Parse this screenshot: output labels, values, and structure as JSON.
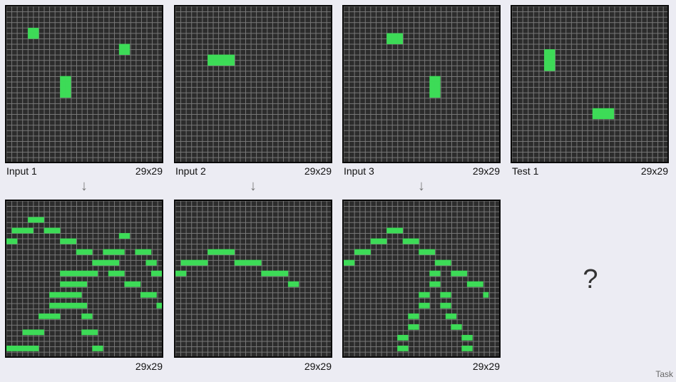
{
  "colors": {
    "background": "#2c2c2c",
    "grid_line": "#7a7a7a",
    "cell": "#3ddb57",
    "page": "#ececf3"
  },
  "pairs": [
    {
      "input": {
        "label": "Input 1",
        "size": "29x29",
        "cells": [
          [
            4,
            4
          ],
          [
            5,
            4
          ],
          [
            4,
            5
          ],
          [
            5,
            5
          ],
          [
            21,
            7
          ],
          [
            22,
            7
          ],
          [
            21,
            8
          ],
          [
            22,
            8
          ],
          [
            10,
            13
          ],
          [
            11,
            13
          ],
          [
            10,
            14
          ],
          [
            11,
            14
          ],
          [
            10,
            15
          ],
          [
            11,
            15
          ],
          [
            10,
            16
          ],
          [
            11,
            16
          ]
        ]
      },
      "output": {
        "size": "29x29",
        "cells": [
          [
            4,
            3
          ],
          [
            5,
            3
          ],
          [
            6,
            3
          ],
          [
            1,
            5
          ],
          [
            2,
            5
          ],
          [
            3,
            5
          ],
          [
            4,
            5
          ],
          [
            7,
            5
          ],
          [
            8,
            5
          ],
          [
            9,
            5
          ],
          [
            0,
            7
          ],
          [
            1,
            7
          ],
          [
            10,
            7
          ],
          [
            11,
            7
          ],
          [
            12,
            7
          ],
          [
            21,
            6
          ],
          [
            22,
            6
          ],
          [
            13,
            9
          ],
          [
            14,
            9
          ],
          [
            15,
            9
          ],
          [
            18,
            9
          ],
          [
            19,
            9
          ],
          [
            20,
            9
          ],
          [
            21,
            9
          ],
          [
            24,
            9
          ],
          [
            25,
            9
          ],
          [
            26,
            9
          ],
          [
            16,
            11
          ],
          [
            17,
            11
          ],
          [
            18,
            11
          ],
          [
            19,
            11
          ],
          [
            20,
            11
          ],
          [
            26,
            11
          ],
          [
            27,
            11
          ],
          [
            10,
            13
          ],
          [
            11,
            13
          ],
          [
            12,
            13
          ],
          [
            13,
            13
          ],
          [
            14,
            13
          ],
          [
            15,
            13
          ],
          [
            16,
            13
          ],
          [
            19,
            13
          ],
          [
            20,
            13
          ],
          [
            21,
            13
          ],
          [
            27,
            13
          ],
          [
            28,
            13
          ],
          [
            10,
            15
          ],
          [
            11,
            15
          ],
          [
            12,
            15
          ],
          [
            13,
            15
          ],
          [
            14,
            15
          ],
          [
            22,
            15
          ],
          [
            23,
            15
          ],
          [
            24,
            15
          ],
          [
            8,
            17
          ],
          [
            9,
            17
          ],
          [
            10,
            17
          ],
          [
            11,
            17
          ],
          [
            12,
            17
          ],
          [
            13,
            17
          ],
          [
            25,
            17
          ],
          [
            26,
            17
          ],
          [
            27,
            17
          ],
          [
            8,
            19
          ],
          [
            9,
            19
          ],
          [
            10,
            19
          ],
          [
            11,
            19
          ],
          [
            12,
            19
          ],
          [
            13,
            19
          ],
          [
            14,
            19
          ],
          [
            28,
            19
          ],
          [
            6,
            21
          ],
          [
            7,
            21
          ],
          [
            8,
            21
          ],
          [
            9,
            21
          ],
          [
            14,
            21
          ],
          [
            15,
            21
          ],
          [
            3,
            24
          ],
          [
            4,
            24
          ],
          [
            5,
            24
          ],
          [
            6,
            24
          ],
          [
            14,
            24
          ],
          [
            15,
            24
          ],
          [
            16,
            24
          ],
          [
            0,
            27
          ],
          [
            1,
            27
          ],
          [
            2,
            27
          ],
          [
            3,
            27
          ],
          [
            4,
            27
          ],
          [
            5,
            27
          ],
          [
            16,
            27
          ],
          [
            17,
            27
          ]
        ]
      }
    },
    {
      "input": {
        "label": "Input 2",
        "size": "29x29",
        "cells": [
          [
            6,
            9
          ],
          [
            7,
            9
          ],
          [
            8,
            9
          ],
          [
            9,
            9
          ],
          [
            10,
            9
          ],
          [
            6,
            10
          ],
          [
            7,
            10
          ],
          [
            8,
            10
          ],
          [
            9,
            10
          ],
          [
            10,
            10
          ]
        ]
      },
      "output": {
        "size": "29x29",
        "cells": [
          [
            6,
            9
          ],
          [
            7,
            9
          ],
          [
            8,
            9
          ],
          [
            9,
            9
          ],
          [
            10,
            9
          ],
          [
            1,
            11
          ],
          [
            2,
            11
          ],
          [
            3,
            11
          ],
          [
            4,
            11
          ],
          [
            5,
            11
          ],
          [
            11,
            11
          ],
          [
            12,
            11
          ],
          [
            13,
            11
          ],
          [
            14,
            11
          ],
          [
            15,
            11
          ],
          [
            0,
            13
          ],
          [
            1,
            13
          ],
          [
            16,
            13
          ],
          [
            17,
            13
          ],
          [
            18,
            13
          ],
          [
            19,
            13
          ],
          [
            20,
            13
          ],
          [
            21,
            15
          ],
          [
            22,
            15
          ]
        ]
      }
    },
    {
      "input": {
        "label": "Input 3",
        "size": "29x29",
        "cells": [
          [
            8,
            5
          ],
          [
            9,
            5
          ],
          [
            10,
            5
          ],
          [
            8,
            6
          ],
          [
            9,
            6
          ],
          [
            10,
            6
          ],
          [
            16,
            13
          ],
          [
            17,
            13
          ],
          [
            16,
            14
          ],
          [
            17,
            14
          ],
          [
            16,
            15
          ],
          [
            17,
            15
          ],
          [
            16,
            16
          ],
          [
            17,
            16
          ]
        ]
      },
      "output": {
        "size": "29x29",
        "cells": [
          [
            8,
            5
          ],
          [
            9,
            5
          ],
          [
            10,
            5
          ],
          [
            5,
            7
          ],
          [
            6,
            7
          ],
          [
            7,
            7
          ],
          [
            11,
            7
          ],
          [
            12,
            7
          ],
          [
            13,
            7
          ],
          [
            2,
            9
          ],
          [
            3,
            9
          ],
          [
            4,
            9
          ],
          [
            14,
            9
          ],
          [
            15,
            9
          ],
          [
            16,
            9
          ],
          [
            0,
            11
          ],
          [
            1,
            11
          ],
          [
            17,
            11
          ],
          [
            18,
            11
          ],
          [
            19,
            11
          ],
          [
            16,
            13
          ],
          [
            17,
            13
          ],
          [
            20,
            13
          ],
          [
            21,
            13
          ],
          [
            22,
            13
          ],
          [
            16,
            15
          ],
          [
            17,
            15
          ],
          [
            23,
            15
          ],
          [
            24,
            15
          ],
          [
            25,
            15
          ],
          [
            14,
            17
          ],
          [
            15,
            17
          ],
          [
            18,
            17
          ],
          [
            19,
            17
          ],
          [
            26,
            17
          ],
          [
            14,
            19
          ],
          [
            15,
            19
          ],
          [
            18,
            19
          ],
          [
            19,
            19
          ],
          [
            12,
            21
          ],
          [
            13,
            21
          ],
          [
            19,
            21
          ],
          [
            20,
            21
          ],
          [
            12,
            23
          ],
          [
            13,
            23
          ],
          [
            20,
            23
          ],
          [
            21,
            23
          ],
          [
            10,
            25
          ],
          [
            11,
            25
          ],
          [
            22,
            25
          ],
          [
            23,
            25
          ],
          [
            10,
            27
          ],
          [
            11,
            27
          ],
          [
            22,
            27
          ],
          [
            23,
            27
          ]
        ]
      }
    }
  ],
  "test": {
    "label": "Test 1",
    "size": "29x29",
    "cells": [
      [
        6,
        8
      ],
      [
        7,
        8
      ],
      [
        6,
        9
      ],
      [
        7,
        9
      ],
      [
        6,
        10
      ],
      [
        7,
        10
      ],
      [
        6,
        11
      ],
      [
        7,
        11
      ],
      [
        15,
        19
      ],
      [
        16,
        19
      ],
      [
        17,
        19
      ],
      [
        18,
        19
      ],
      [
        15,
        20
      ],
      [
        16,
        20
      ],
      [
        17,
        20
      ],
      [
        18,
        20
      ]
    ]
  },
  "test_output_placeholder": "?",
  "arrow_glyph": "↓",
  "footer": "Task"
}
